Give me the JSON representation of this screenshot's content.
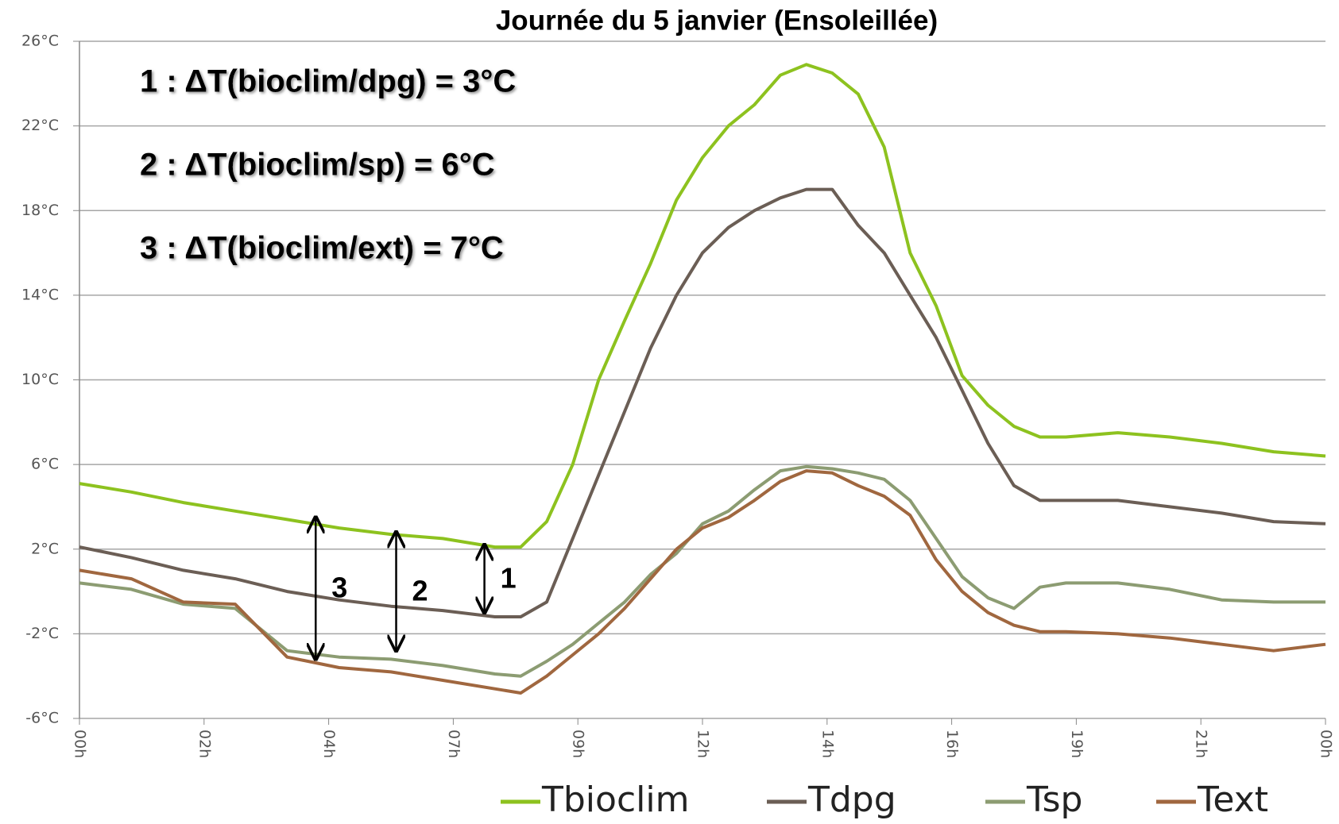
{
  "chart_data": {
    "type": "line",
    "title": "Journée du 5 janvier (Ensoleillée)",
    "annotations": [
      "1 : ΔT(bioclim/dpg) = 3°C",
      "2 : ΔT(bioclim/sp) = 6°C",
      "3 : ΔT(bioclim/ext) = 7°C"
    ],
    "arrows": [
      {
        "label": "3",
        "x": 4.55,
        "y": [
          -3.2,
          3.5
        ]
      },
      {
        "label": "2",
        "x": 6.1,
        "y": [
          -2.8,
          2.8
        ]
      },
      {
        "label": "1",
        "x": 7.8,
        "y": [
          -1.0,
          2.2
        ]
      }
    ],
    "x": [
      0,
      1,
      2,
      3,
      4,
      5,
      6,
      7,
      8,
      8.5,
      9,
      9.5,
      10,
      10.5,
      11,
      11.5,
      12,
      12.5,
      13,
      13.5,
      14,
      14.5,
      15,
      15.5,
      16,
      16.5,
      17,
      17.5,
      18,
      18.5,
      19,
      20,
      21,
      22,
      23,
      24
    ],
    "xlim": [
      0,
      24
    ],
    "xticks": [
      {
        "value": 0,
        "label": "00h"
      },
      {
        "value": 2.4,
        "label": "02h"
      },
      {
        "value": 4.8,
        "label": "04h"
      },
      {
        "value": 7.2,
        "label": "07h"
      },
      {
        "value": 9.6,
        "label": "09h"
      },
      {
        "value": 12,
        "label": "12h"
      },
      {
        "value": 14.4,
        "label": "14h"
      },
      {
        "value": 16.8,
        "label": "16h"
      },
      {
        "value": 19.2,
        "label": "19h"
      },
      {
        "value": 21.6,
        "label": "21h"
      },
      {
        "value": 24,
        "label": "00h"
      }
    ],
    "ylim": [
      -6,
      26
    ],
    "yticks": [
      {
        "value": -6,
        "label": "-6°C"
      },
      {
        "value": -2,
        "label": "-2°C"
      },
      {
        "value": 2,
        "label": "2°C"
      },
      {
        "value": 6,
        "label": "6°C"
      },
      {
        "value": 10,
        "label": "10°C"
      },
      {
        "value": 14,
        "label": "14°C"
      },
      {
        "value": 18,
        "label": "18°C"
      },
      {
        "value": 22,
        "label": "22°C"
      },
      {
        "value": 26,
        "label": "26°C"
      }
    ],
    "grid": true,
    "legend": "bottom",
    "series": [
      {
        "name": "Tbioclim",
        "color": "#8dc21f",
        "values": [
          5.1,
          4.7,
          4.2,
          3.8,
          3.4,
          3.0,
          2.7,
          2.5,
          2.1,
          2.1,
          3.3,
          6.0,
          10.0,
          12.8,
          15.5,
          18.5,
          20.5,
          22,
          23,
          24.4,
          24.9,
          24.5,
          23.5,
          21,
          16,
          13.5,
          10.2,
          8.8,
          7.8,
          7.3,
          7.3,
          7.5,
          7.3,
          7.0,
          6.6,
          6.4
        ]
      },
      {
        "name": "Tdpg",
        "color": "#6b5e55",
        "values": [
          2.1,
          1.6,
          1.0,
          0.6,
          0.0,
          -0.4,
          -0.7,
          -0.9,
          -1.2,
          -1.2,
          -0.5,
          2.5,
          5.5,
          8.5,
          11.5,
          14,
          16,
          17.2,
          18,
          18.6,
          19,
          19,
          17.3,
          16,
          14,
          12,
          9.5,
          7,
          5,
          4.3,
          4.3,
          4.3,
          4.0,
          3.7,
          3.3,
          3.2
        ]
      },
      {
        "name": "Tsp",
        "color": "#8c9c72",
        "values": [
          0.4,
          0.1,
          -0.6,
          -0.8,
          -2.8,
          -3.1,
          -3.2,
          -3.5,
          -3.9,
          -4.0,
          -3.3,
          -2.5,
          -1.5,
          -0.5,
          0.8,
          1.8,
          3.2,
          3.8,
          4.8,
          5.7,
          5.9,
          5.8,
          5.6,
          5.3,
          4.3,
          2.5,
          0.7,
          -0.3,
          -0.8,
          0.2,
          0.4,
          0.4,
          0.1,
          -0.4,
          -0.5,
          -0.5
        ]
      },
      {
        "name": "Text",
        "color": "#a0673f",
        "values": [
          1.0,
          0.6,
          -0.5,
          -0.6,
          -3.1,
          -3.6,
          -3.8,
          -4.2,
          -4.6,
          -4.8,
          -4.0,
          -3.0,
          -2.0,
          -0.8,
          0.6,
          2.0,
          3.0,
          3.5,
          4.3,
          5.2,
          5.7,
          5.6,
          5.0,
          4.5,
          3.6,
          1.5,
          0,
          -1.0,
          -1.6,
          -1.9,
          -1.9,
          -2.0,
          -2.2,
          -2.5,
          -2.8,
          -2.5
        ]
      }
    ]
  }
}
